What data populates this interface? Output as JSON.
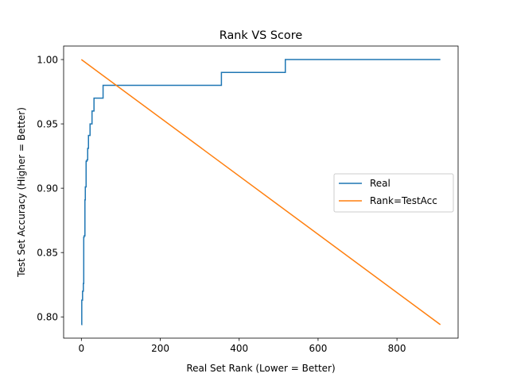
{
  "chart_data": {
    "type": "line",
    "title": "Rank VS Score",
    "xlabel": "Real Set Rank (Lower = Better)",
    "ylabel": "Test Set Accuracy (Higher = Better)",
    "xlim": [
      -45,
      955
    ],
    "ylim": [
      0.7835,
      1.0105
    ],
    "xticks": [
      0,
      200,
      400,
      600,
      800
    ],
    "yticks": [
      0.8,
      0.85,
      0.9,
      0.95,
      1.0
    ],
    "xtick_labels": [
      "0",
      "200",
      "400",
      "600",
      "800"
    ],
    "ytick_labels": [
      "0.80",
      "0.85",
      "0.90",
      "0.95",
      "1.00"
    ],
    "grid": false,
    "legend": {
      "placement": "center-right"
    },
    "series": [
      {
        "name": "Real",
        "color": "#1f77b4",
        "step": true,
        "x": [
          0,
          1,
          3,
          5,
          6,
          7,
          9,
          10,
          12,
          14,
          16,
          18,
          22,
          27,
          32,
          37,
          55,
          355,
          517,
          910
        ],
        "y": [
          0.794,
          0.813,
          0.82,
          0.826,
          0.862,
          0.863,
          0.891,
          0.901,
          0.921,
          0.922,
          0.931,
          0.941,
          0.95,
          0.96,
          0.97,
          0.97,
          0.98,
          0.99,
          1.0,
          1.0
        ]
      },
      {
        "name": "Rank=TestAcc",
        "color": "#ff7f0e",
        "step": false,
        "x": [
          0,
          910
        ],
        "y": [
          1.0,
          0.794
        ]
      }
    ]
  }
}
